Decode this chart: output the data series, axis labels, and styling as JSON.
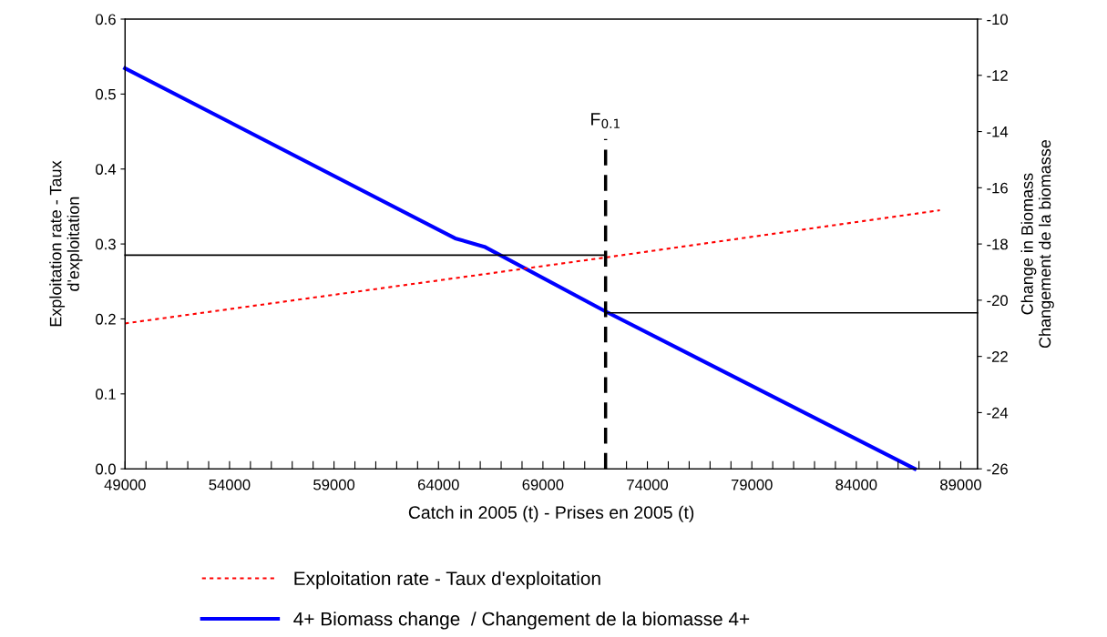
{
  "chart_data": {
    "type": "line",
    "xlabel": "Catch in 2005 (t) - Prises en 2005 (t)",
    "ylabel": "Exploitation rate - Taux\nd'exploitation",
    "y2label": "Change in Biomass\nChangement de la biomasse",
    "xlim": [
      49000,
      89800
    ],
    "xticks": [
      49000,
      {
        "value": 50000,
        "label": null
      },
      {
        "value": 51000,
        "label": null
      },
      {
        "value": 52000,
        "label": null
      },
      {
        "value": 53000,
        "label": null
      },
      54000,
      {
        "value": 55000,
        "label": null
      },
      {
        "value": 56000,
        "label": null
      },
      {
        "value": 57000,
        "label": null
      },
      {
        "value": 58000,
        "label": null
      },
      59000,
      {
        "value": 60000,
        "label": null
      },
      {
        "value": 61000,
        "label": null
      },
      {
        "value": 62000,
        "label": null
      },
      {
        "value": 63000,
        "label": null
      },
      64000,
      {
        "value": 65000,
        "label": null
      },
      {
        "value": 66000,
        "label": null
      },
      {
        "value": 67000,
        "label": null
      },
      {
        "value": 68000,
        "label": null
      },
      69000,
      {
        "value": 70000,
        "label": null
      },
      {
        "value": 71000,
        "label": null
      },
      {
        "value": 73000,
        "label": null
      },
      74000,
      {
        "value": 75000,
        "label": null
      },
      {
        "value": 76000,
        "label": null
      },
      {
        "value": 77000,
        "label": null
      },
      {
        "value": 78000,
        "label": null
      },
      79000,
      {
        "value": 80000,
        "label": null
      },
      {
        "value": 81000,
        "label": null
      },
      {
        "value": 82000,
        "label": null
      },
      {
        "value": 83000,
        "label": null
      },
      84000,
      {
        "value": 85000,
        "label": null
      },
      {
        "value": 86000,
        "label": null
      },
      {
        "value": 87000,
        "label": null
      },
      {
        "value": 88000,
        "label": null
      },
      89000
    ],
    "ylim": [
      0,
      0.6
    ],
    "yticks": [
      {
        "value": 0,
        "label": "0.0"
      },
      0.1,
      0.2,
      0.3,
      0.4,
      0.5,
      0.6
    ],
    "y2lim": [
      -26,
      -10
    ],
    "y2ticks": [
      -26,
      -24,
      -22,
      -20,
      -18,
      -16,
      -14,
      -12,
      -10
    ],
    "grid": false,
    "legend": "bottom",
    "marker": "none",
    "annotations": [
      {
        "text": "F$_{0.1}$",
        "x": 72000,
        "y": 0.44
      }
    ],
    "series": [
      {
        "name": "Exploitation rate - Taux d'exploitation",
        "color": "#ff0000",
        "line_style": "dotted",
        "x": [
          49000,
          66000,
          72000,
          88000
        ],
        "values": [
          0.194,
          0.259,
          0.282,
          0.345
        ]
      },
      {
        "name": "4+ Biomass change  / Changement de la biomasse 4+",
        "axis": "y2",
        "color": "#0000ff",
        "line_style": "solid",
        "x": [
          49000,
          64800,
          66200,
          72000,
          86800
        ],
        "values": [
          -11.75,
          -17.8,
          -18.1,
          -20.4,
          -26
        ]
      },
      {
        "color": "#000000",
        "line_style": "solid",
        "x": [
          49000,
          72000
        ],
        "values": [
          0.285,
          0.285
        ]
      },
      {
        "axis": "y2",
        "color": "#000000",
        "line_style": "solid",
        "x": [
          72000,
          89800
        ],
        "values": [
          -20.45,
          -20.45
        ]
      },
      {
        "color": "#000000",
        "line_style": "dashed",
        "x": [
          72000,
          72000
        ],
        "values": [
          0,
          0.44
        ]
      }
    ]
  }
}
